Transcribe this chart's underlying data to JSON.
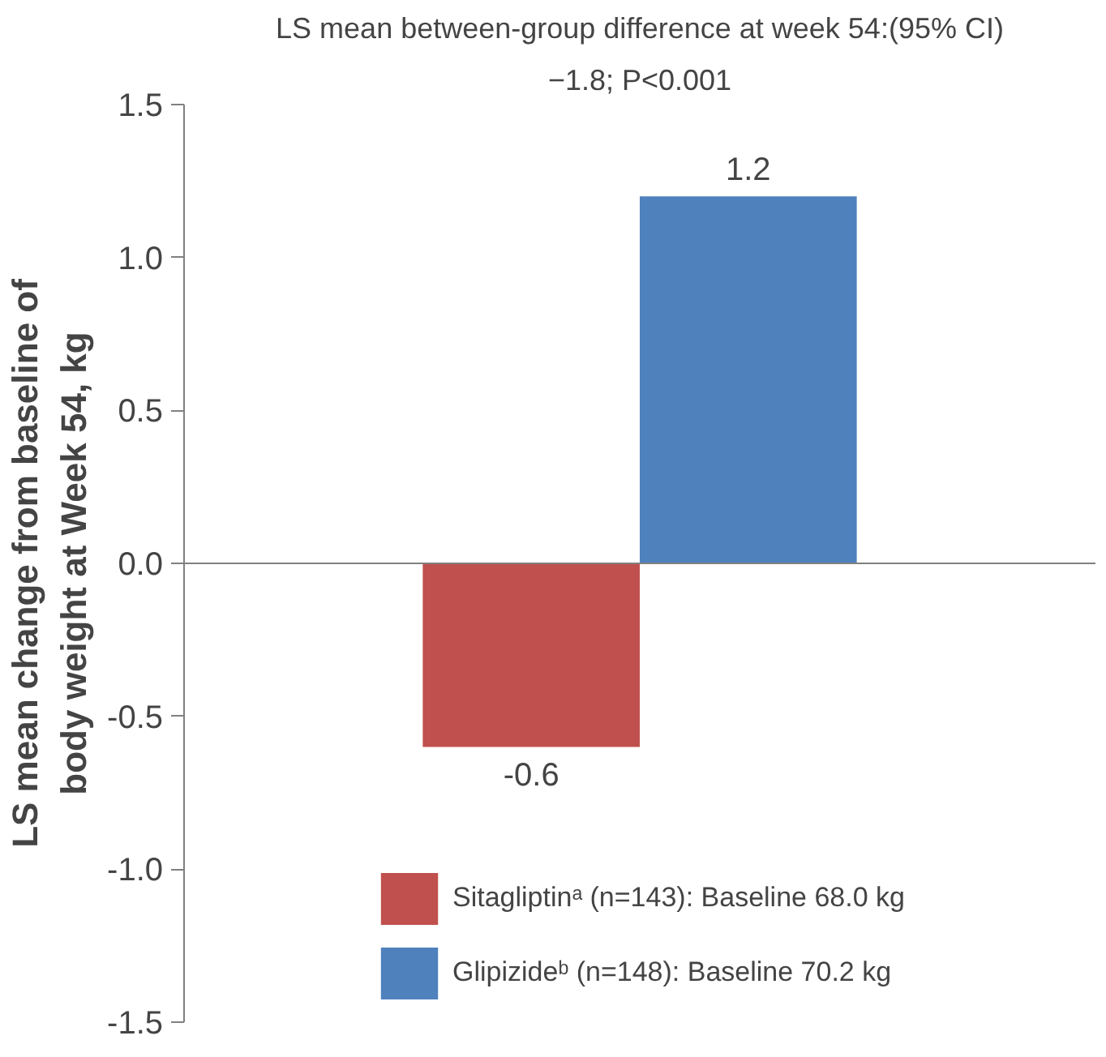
{
  "chart_data": {
    "type": "bar",
    "title": "LS mean between-group difference at week 54:(95% CI)",
    "subtitle": "−1.8; P<0.001",
    "ylabel": "LS mean change from baseline of\nbody weight at Week 54, kg",
    "categories": [
      null,
      null
    ],
    "series": [
      {
        "name": "Sitagliptinᵃ (n=143): Baseline 68.0 kg",
        "color": "#c0504d",
        "values": [
          -0.6,
          null
        ]
      },
      {
        "name": "Glipizideᵇ (n=148): Baseline 70.2 kg",
        "color": "#4f81bd",
        "values": [
          null,
          1.2
        ]
      }
    ],
    "ylim": [
      -1.5,
      1.5
    ],
    "yticks": [
      {
        "value": -1.5,
        "label": "-1.5"
      },
      {
        "value": -1.0,
        "label": "-1.0"
      },
      {
        "value": -0.5,
        "label": "-0.5"
      },
      {
        "value": 0,
        "label": "0.0"
      },
      {
        "value": 0.5,
        "label": "0.5"
      },
      {
        "value": 1.0,
        "label": "1.0"
      },
      {
        "value": 1.5,
        "label": "1.5"
      }
    ],
    "tick_labels": "y",
    "legend": "bottom",
    "data_labels": true
  }
}
